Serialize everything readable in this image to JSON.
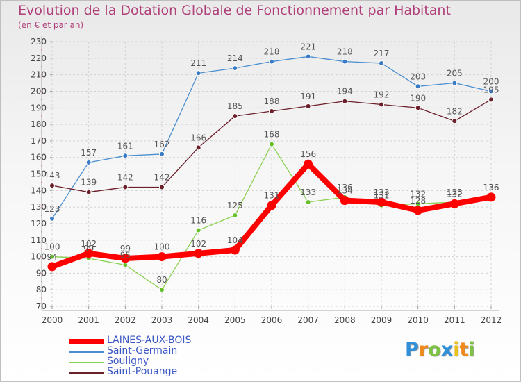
{
  "chart_data": {
    "type": "line",
    "title": "Evolution de la Dotation Globale de Fonctionnement par Habitant",
    "subtitle": "(en € et par an)",
    "xlabel": "",
    "ylabel": "",
    "x": [
      "2000",
      "2001",
      "2002",
      "2003",
      "2004",
      "2005",
      "2006",
      "2007",
      "2008",
      "2009",
      "2010",
      "2011",
      "2012"
    ],
    "ylim": [
      70,
      230
    ],
    "yticks": [
      70,
      80,
      90,
      100,
      110,
      120,
      130,
      140,
      150,
      160,
      170,
      180,
      190,
      200,
      210,
      220,
      230
    ],
    "grid": true,
    "legend": "bottom-left",
    "series": [
      {
        "name": "Saint-Germain",
        "color": "#4b8fd0",
        "point_color": "#3a7bc4",
        "values": [
          123,
          157,
          161,
          162,
          211,
          214,
          218,
          221,
          218,
          217,
          203,
          205,
          200
        ]
      },
      {
        "name": "Saint-Pouange",
        "color": "#6b1f2a",
        "point_color": "#6b1f2a",
        "values": [
          143,
          139,
          142,
          142,
          166,
          185,
          188,
          191,
          194,
          192,
          190,
          182,
          195
        ]
      },
      {
        "name": "Souligny",
        "color": "#8ad050",
        "point_color": "#66c02a",
        "values": [
          100,
          99,
          95,
          80,
          116,
          125,
          168,
          133,
          136,
          131,
          132,
          133,
          136
        ]
      },
      {
        "name": "LAINES-AUX-BOIS",
        "color": "#ff0000",
        "point_color": "#ff0000",
        "values": [
          94,
          102,
          99,
          100,
          102,
          104,
          131,
          156,
          134,
          133,
          128,
          132,
          136
        ]
      }
    ],
    "legend_order": [
      "LAINES-AUX-BOIS",
      "Saint-Germain",
      "Souligny",
      "Saint-Pouange"
    ]
  },
  "logo": {
    "letters": [
      "P",
      "r",
      "o",
      "x",
      "i",
      "t",
      "i"
    ],
    "colors": [
      "#2f8fd8",
      "#f08a1c",
      "#7dc242",
      "#2f8fd8",
      "#e8c020",
      "#f08a1c",
      "#7dc242"
    ]
  }
}
